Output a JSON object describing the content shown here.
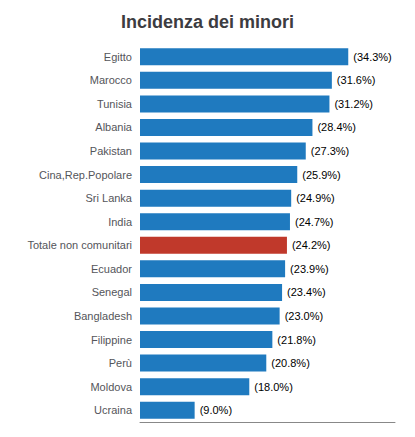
{
  "chart_data": {
    "type": "bar",
    "orientation": "horizontal",
    "title": "Incidenza dei minori",
    "categories": [
      "Egitto",
      "Marocco",
      "Tunisia",
      "Albania",
      "Pakistan",
      "Cina,Rep.Popolare",
      "Sri Lanka",
      "India",
      "Totale non comunitari",
      "Ecuador",
      "Senegal",
      "Bangladesh",
      "Filippine",
      "Perù",
      "Moldova",
      "Ucraina"
    ],
    "values": [
      34.3,
      31.6,
      31.2,
      28.4,
      27.3,
      25.9,
      24.9,
      24.7,
      24.2,
      23.9,
      23.4,
      23.0,
      21.8,
      20.8,
      18.0,
      9.0
    ],
    "value_labels": [
      "(34.3%)",
      "(31.6%)",
      "(31.2%)",
      "(28.4%)",
      "(27.3%)",
      "(25.9%)",
      "(24.9%)",
      "(24.7%)",
      "(24.2%)",
      "(23.9%)",
      "(23.4%)",
      "(23.0%)",
      "(21.8%)",
      "(20.8%)",
      "(18.0%)",
      "(9.0%)"
    ],
    "colors": [
      "#1f7abf",
      "#1f7abf",
      "#1f7abf",
      "#1f7abf",
      "#1f7abf",
      "#1f7abf",
      "#1f7abf",
      "#1f7abf",
      "#c0392b",
      "#1f7abf",
      "#1f7abf",
      "#1f7abf",
      "#1f7abf",
      "#1f7abf",
      "#1f7abf",
      "#1f7abf"
    ],
    "xlim": [
      0,
      42
    ],
    "xticks": [],
    "tick_labels": "y",
    "data_labels": true,
    "grid": false
  }
}
